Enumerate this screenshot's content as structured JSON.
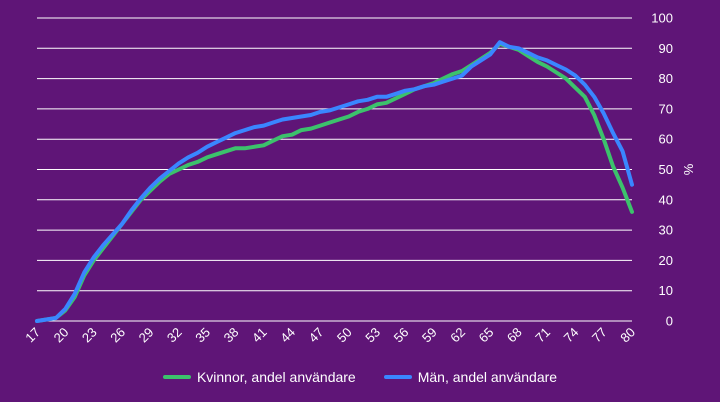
{
  "chart_data": {
    "type": "line",
    "ylabel": "%",
    "ylim": [
      0,
      100
    ],
    "yticks": [
      "0",
      "10",
      "20",
      "30",
      "40",
      "50",
      "60",
      "70",
      "80",
      "90",
      "100"
    ],
    "xlim": [
      17,
      80
    ],
    "xticks": [
      "17",
      "20",
      "23",
      "26",
      "29",
      "32",
      "35",
      "38",
      "41",
      "44",
      "47",
      "50",
      "53",
      "56",
      "59",
      "62",
      "65",
      "68",
      "71",
      "74",
      "77",
      "80"
    ],
    "grid": true,
    "legend_position": "bottom",
    "x": [
      17,
      18,
      19,
      20,
      21,
      22,
      23,
      24,
      25,
      26,
      27,
      28,
      29,
      30,
      31,
      32,
      33,
      34,
      35,
      36,
      37,
      38,
      39,
      40,
      41,
      42,
      43,
      44,
      45,
      46,
      47,
      48,
      49,
      50,
      51,
      52,
      53,
      54,
      55,
      56,
      57,
      58,
      59,
      60,
      61,
      62,
      63,
      64,
      65,
      66,
      67,
      68,
      69,
      70,
      71,
      72,
      73,
      74,
      75,
      76,
      77,
      78,
      79,
      80
    ],
    "series": [
      {
        "name": "Kvinnor, andel användare",
        "color": "#3cc26c",
        "values": [
          0,
          0.5,
          1,
          3.5,
          8,
          15,
          20,
          24,
          28,
          32,
          36,
          40,
          43,
          46,
          48.5,
          50,
          51.5,
          52.5,
          54,
          55,
          56,
          57,
          57,
          57.5,
          58,
          59.5,
          61,
          61.5,
          63,
          63.5,
          64.5,
          65.5,
          66.5,
          67.5,
          69,
          70,
          71.5,
          72,
          73.5,
          75,
          76.5,
          77.5,
          78.5,
          80,
          81.5,
          82.5,
          84.5,
          86.5,
          88.5,
          91.5,
          90.5,
          89.5,
          87.5,
          85.5,
          84,
          82,
          80,
          77,
          74,
          68,
          60,
          51,
          44,
          36
        ]
      },
      {
        "name": "Män, andel användare",
        "color": "#3a86ff",
        "values": [
          0,
          0.5,
          1,
          4,
          9,
          16,
          21,
          25,
          28.5,
          32,
          36.5,
          40.5,
          44,
          47,
          49.5,
          52,
          54,
          55.5,
          57.5,
          59,
          60.5,
          62,
          63,
          64,
          64.5,
          65.5,
          66.5,
          67,
          67.5,
          68,
          69,
          69.5,
          70.5,
          71.5,
          72.5,
          73,
          74,
          74,
          75,
          76,
          76.5,
          77.5,
          78,
          79,
          80,
          81,
          84,
          86,
          88,
          92,
          90.5,
          90,
          88.5,
          87,
          86,
          84.5,
          83,
          81,
          78,
          74,
          68.5,
          62,
          56,
          45
        ]
      }
    ]
  }
}
